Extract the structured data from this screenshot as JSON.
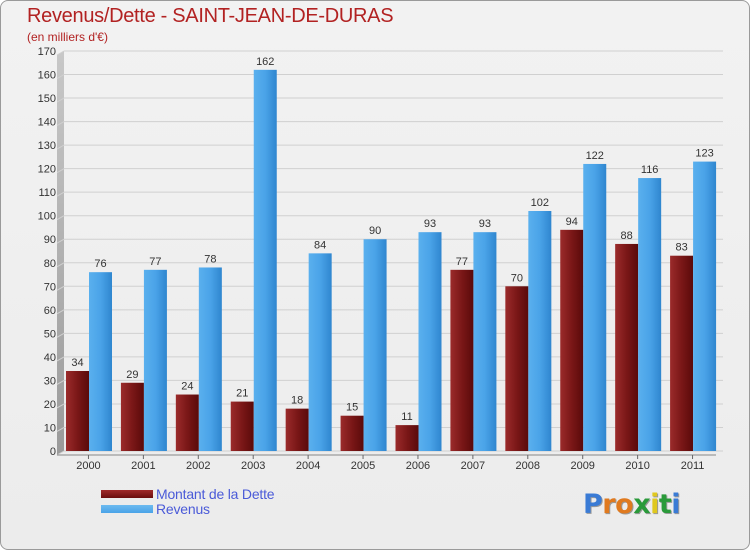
{
  "title": "Revenus/Dette - SAINT-JEAN-DE-DURAS",
  "subtitle": "(en milliers d'€)",
  "chart_data": {
    "type": "bar",
    "categories": [
      "2000",
      "2001",
      "2002",
      "2003",
      "2004",
      "2005",
      "2006",
      "2007",
      "2008",
      "2009",
      "2010",
      "2011"
    ],
    "series": [
      {
        "name": "Montant de la Dette",
        "color": "#7a1515",
        "values": [
          34,
          29,
          24,
          21,
          18,
          15,
          11,
          77,
          70,
          94,
          88,
          83
        ]
      },
      {
        "name": "Revenus",
        "color": "#4aa3e8",
        "values": [
          76,
          77,
          78,
          162,
          84,
          90,
          93,
          93,
          102,
          122,
          116,
          123
        ]
      }
    ],
    "ylim": [
      0,
      170
    ],
    "yticks": [
      0,
      10,
      20,
      30,
      40,
      50,
      60,
      70,
      80,
      90,
      100,
      110,
      120,
      130,
      140,
      150,
      160,
      170
    ],
    "grid": true,
    "legend": "bottom-left"
  },
  "legend": {
    "items": [
      {
        "label": "Montant de la Dette",
        "color": "#6b0d0d"
      },
      {
        "label": "Revenus",
        "color": "#4aa3e8"
      }
    ]
  },
  "logo": {
    "letters": [
      "P",
      "r",
      "o",
      "x",
      "i",
      "t",
      "i"
    ],
    "colors": [
      "#3a7bd5",
      "#e07a1f",
      "#e07a1f",
      "#2a9a3a",
      "#e0c81f",
      "#2a9a3a",
      "#3a7bd5"
    ]
  }
}
